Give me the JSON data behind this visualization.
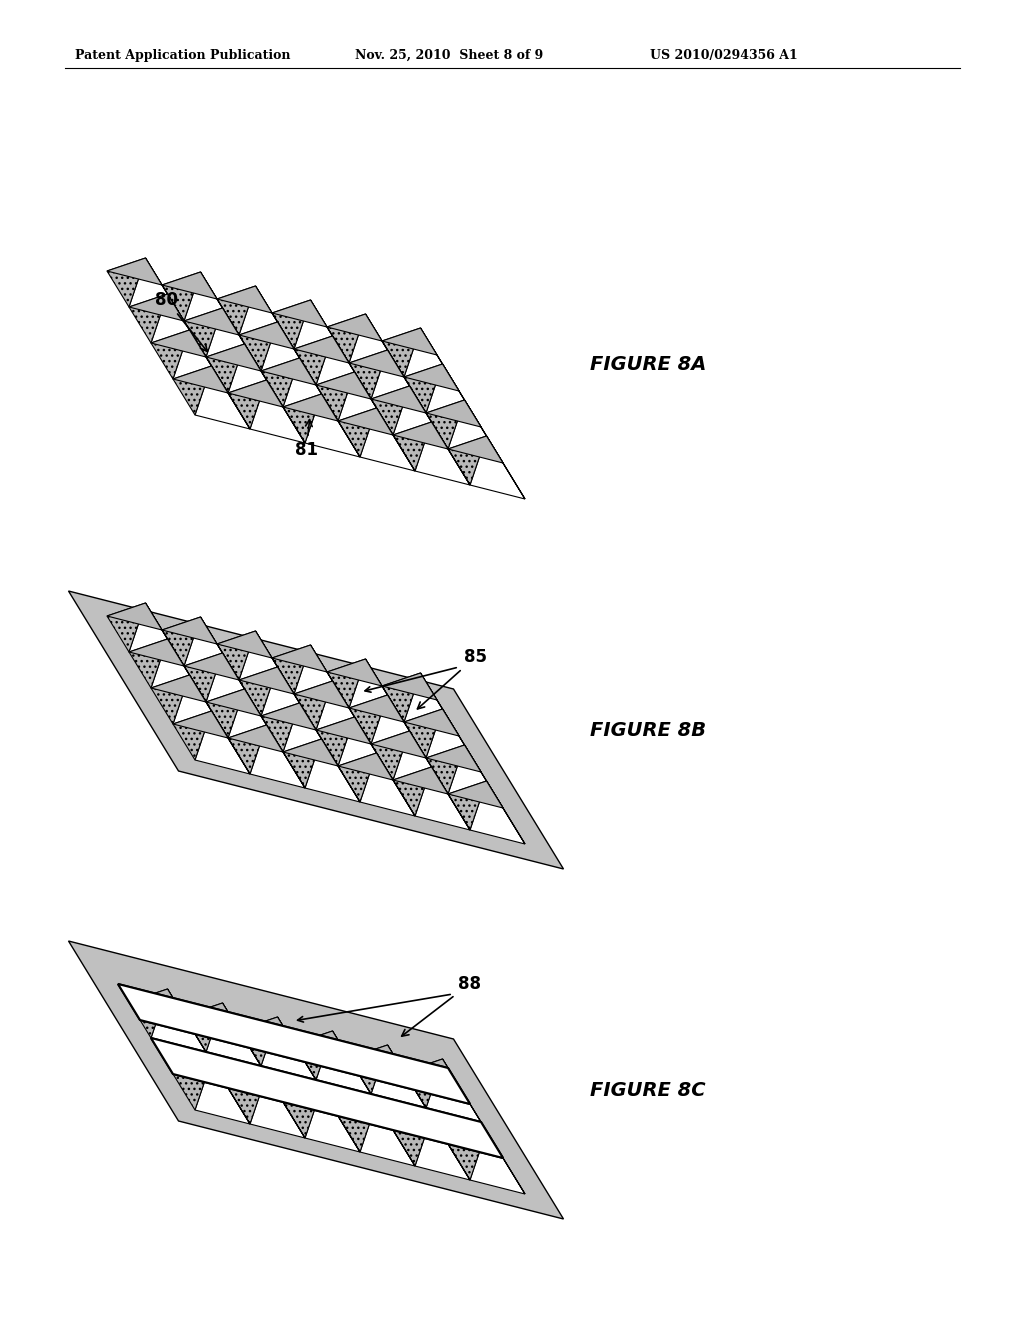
{
  "bg_color": "#ffffff",
  "header_text": "Patent Application Publication",
  "header_date": "Nov. 25, 2010  Sheet 8 of 9",
  "header_patent": "US 2010/0294356 A1",
  "fig8a_label": "FIGURE 8A",
  "fig8b_label": "FIGURE 8B",
  "fig8c_label": "FIGURE 8C",
  "label_80": "80",
  "label_81": "81",
  "label_85": "85",
  "label_88": "88",
  "n_cols": 6,
  "n_rows": 4,
  "pyramid_scale": 0.052,
  "hatch_fill": "#b8b8b8",
  "tri_fill": "white",
  "base_fill": "#c8c8c8",
  "dark_fill": "#999999"
}
